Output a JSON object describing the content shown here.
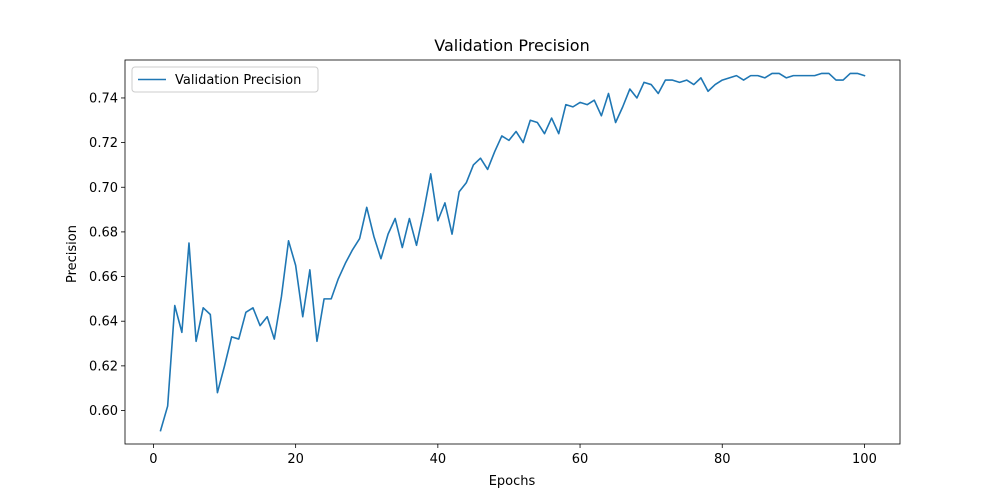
{
  "chart_data": {
    "type": "line",
    "title": "Validation Precision",
    "xlabel": "Epochs",
    "ylabel": "Precision",
    "xlim": [
      -4,
      105
    ],
    "ylim": [
      0.585,
      0.757
    ],
    "xticks": [
      0,
      20,
      40,
      60,
      80,
      100
    ],
    "xtick_labels": [
      "0",
      "20",
      "40",
      "60",
      "80",
      "100"
    ],
    "yticks": [
      0.6,
      0.62,
      0.64,
      0.66,
      0.68,
      0.7,
      0.72,
      0.74
    ],
    "ytick_labels": [
      "0.60",
      "0.62",
      "0.64",
      "0.66",
      "0.68",
      "0.70",
      "0.72",
      "0.74"
    ],
    "grid": false,
    "legend_position": "top-left",
    "series": [
      {
        "name": "Validation Precision",
        "color": "#1f77b4",
        "x": [
          1,
          2,
          3,
          4,
          5,
          6,
          7,
          8,
          9,
          10,
          11,
          12,
          13,
          14,
          15,
          16,
          17,
          18,
          19,
          20,
          21,
          22,
          23,
          24,
          25,
          26,
          27,
          28,
          29,
          30,
          31,
          32,
          33,
          34,
          35,
          36,
          37,
          38,
          39,
          40,
          41,
          42,
          43,
          44,
          45,
          46,
          47,
          48,
          49,
          50,
          51,
          52,
          53,
          54,
          55,
          56,
          57,
          58,
          59,
          60,
          61,
          62,
          63,
          64,
          65,
          66,
          67,
          68,
          69,
          70,
          71,
          72,
          73,
          74,
          75,
          76,
          77,
          78,
          79,
          80,
          81,
          82,
          83,
          84,
          85,
          86,
          87,
          88,
          89,
          90,
          91,
          92,
          93,
          94,
          95,
          96,
          97,
          98,
          99,
          100
        ],
        "y": [
          0.591,
          0.602,
          0.647,
          0.635,
          0.675,
          0.631,
          0.646,
          0.643,
          0.608,
          0.62,
          0.633,
          0.632,
          0.644,
          0.646,
          0.638,
          0.642,
          0.632,
          0.651,
          0.676,
          0.665,
          0.642,
          0.663,
          0.631,
          0.65,
          0.65,
          0.659,
          0.666,
          0.672,
          0.677,
          0.691,
          0.678,
          0.668,
          0.679,
          0.686,
          0.673,
          0.686,
          0.674,
          0.689,
          0.706,
          0.685,
          0.693,
          0.679,
          0.698,
          0.702,
          0.71,
          0.713,
          0.708,
          0.716,
          0.723,
          0.721,
          0.725,
          0.72,
          0.73,
          0.729,
          0.724,
          0.731,
          0.724,
          0.737,
          0.736,
          0.738,
          0.737,
          0.739,
          0.732,
          0.742,
          0.729,
          0.736,
          0.744,
          0.74,
          0.747,
          0.746,
          0.742,
          0.748,
          0.748,
          0.747,
          0.748,
          0.746,
          0.749,
          0.743,
          0.746,
          0.748,
          0.749,
          0.75,
          0.748,
          0.75,
          0.75,
          0.749,
          0.751,
          0.751,
          0.749,
          0.75,
          0.75,
          0.75,
          0.75,
          0.751,
          0.751,
          0.748,
          0.748,
          0.751,
          0.751,
          0.75
        ]
      }
    ]
  }
}
